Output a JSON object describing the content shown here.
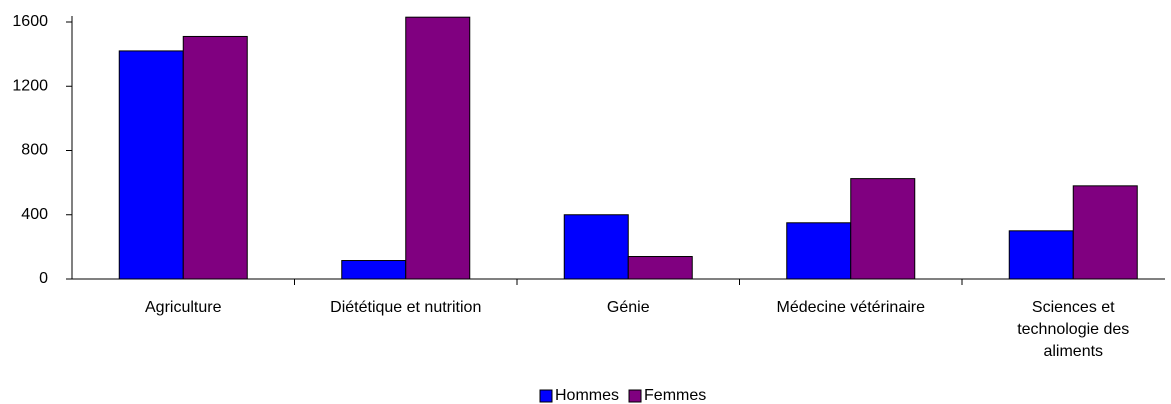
{
  "chart_data": {
    "type": "bar",
    "categories": [
      "Agriculture",
      "Diététique et nutrition",
      "Génie",
      "Médecine vétérinaire",
      "Sciences et technologie des aliments"
    ],
    "series": [
      {
        "name": "Hommes",
        "color": "#0000ff",
        "values": [
          1420,
          115,
          400,
          350,
          300
        ]
      },
      {
        "name": "Femmes",
        "color": "#800080",
        "values": [
          1510,
          1630,
          140,
          625,
          580
        ]
      }
    ],
    "ylim": [
      0,
      1600
    ],
    "yticks": [
      0,
      400,
      800,
      1200,
      1600
    ],
    "legend": "bottom"
  }
}
